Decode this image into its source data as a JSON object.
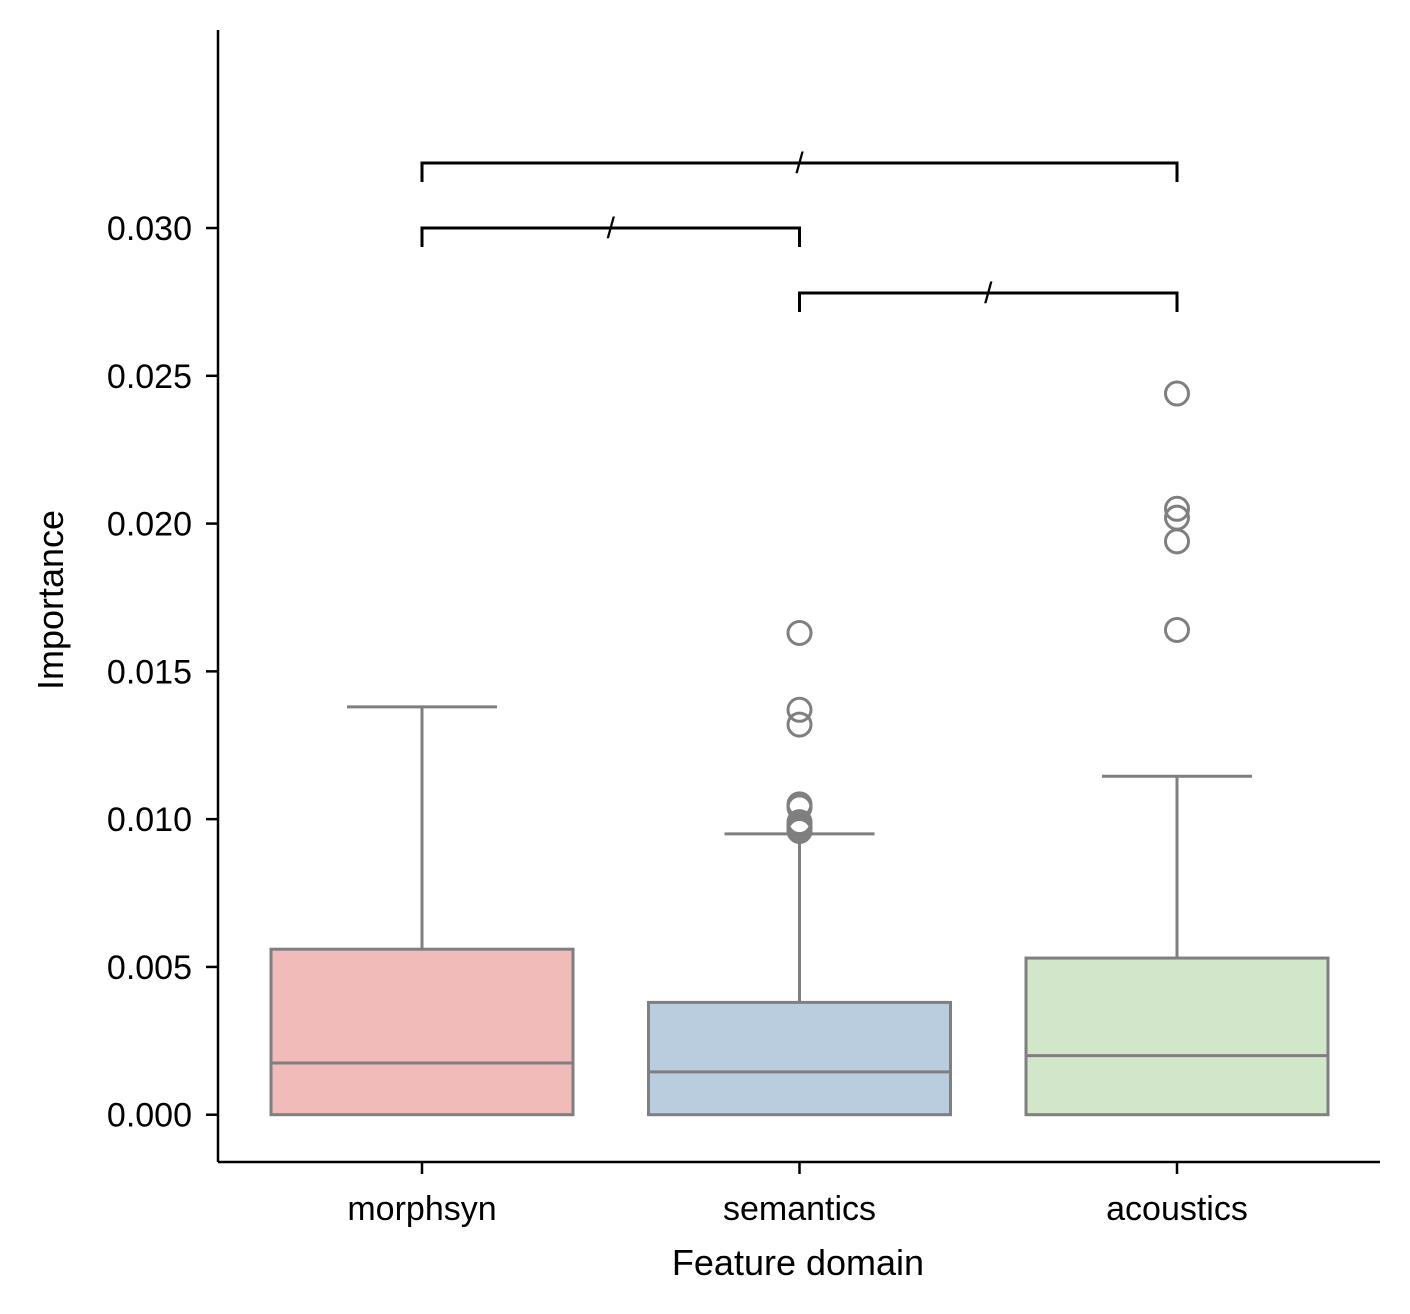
{
  "chart_data": {
    "type": "box",
    "title": "",
    "xlabel": "Feature domain",
    "ylabel": "Importance",
    "ylim": [
      -0.0016,
      0.0367
    ],
    "yticks": [
      0.0,
      0.005,
      0.01,
      0.015,
      0.02,
      0.025,
      0.03
    ],
    "ytick_labels": [
      "0.000",
      "0.005",
      "0.010",
      "0.015",
      "0.020",
      "0.025",
      "0.030"
    ],
    "categories": [
      "morphsyn",
      "semantics",
      "acoustics"
    ],
    "grid": false,
    "legend": "none",
    "colors": {
      "morphsyn": "#f1bbb9",
      "semantics": "#b9cddf",
      "acoustics": "#d2e6c9",
      "box_edge": "#7f7f7f",
      "bracket": "#000000"
    },
    "boxes": [
      {
        "category": "morphsyn",
        "whislo": 0.0,
        "q1": 0.0,
        "median": 0.00175,
        "q3": 0.0056,
        "whishi": 0.0138,
        "fliers": []
      },
      {
        "category": "semantics",
        "whislo": 0.0,
        "q1": 0.0,
        "median": 0.00145,
        "q3": 0.0038,
        "whishi": 0.0095,
        "fliers": [
          0.0163,
          0.0137,
          0.0132,
          0.0105,
          0.0104,
          0.0099,
          0.0098,
          0.0097,
          0.0096
        ]
      },
      {
        "category": "acoustics",
        "whislo": 0.0,
        "q1": 0.0,
        "median": 0.002,
        "q3": 0.0053,
        "whishi": 0.01145,
        "fliers": [
          0.0244,
          0.0205,
          0.0202,
          0.0194,
          0.0164
        ]
      }
    ],
    "significance": [
      {
        "from": "morphsyn",
        "to": "acoustics",
        "y": 0.0322,
        "label": "/"
      },
      {
        "from": "morphsyn",
        "to": "semantics",
        "y": 0.03,
        "label": "/"
      },
      {
        "from": "semantics",
        "to": "acoustics",
        "y": 0.0278,
        "label": "/"
      }
    ]
  }
}
